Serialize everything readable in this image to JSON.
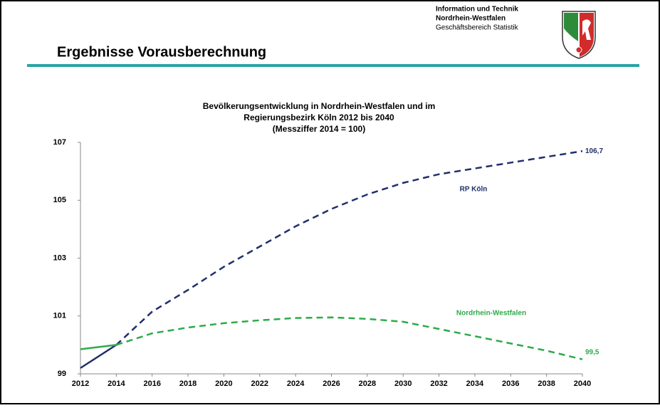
{
  "header": {
    "title": "Ergebnisse Vorausberechnung",
    "org_lines": [
      "Information und Technik",
      "Nordrhein-Westfalen",
      "Geschäftsbereich Statistik"
    ]
  },
  "chart_data": {
    "type": "line",
    "title_lines": [
      "Bevölkerungsentwicklung in Nordrhein-Westfalen und im",
      "Regierungsbezirk Köln 2012 bis 2040",
      "(Messziffer 2014 = 100)"
    ],
    "x": [
      2012,
      2014,
      2016,
      2018,
      2020,
      2022,
      2024,
      2026,
      2028,
      2030,
      2032,
      2034,
      2036,
      2038,
      2040
    ],
    "xlim": [
      2012,
      2040
    ],
    "xticks": [
      2012,
      2014,
      2016,
      2018,
      2020,
      2022,
      2024,
      2026,
      2028,
      2030,
      2032,
      2034,
      2036,
      2038,
      2040
    ],
    "ylim": [
      99,
      107
    ],
    "yticks": [
      99,
      101,
      103,
      105,
      107
    ],
    "dashed_from": 2014,
    "series": [
      {
        "name": "RP Köln",
        "color": "#1f2f6b",
        "values": [
          99.2,
          100.0,
          101.15,
          101.9,
          102.7,
          103.4,
          104.1,
          104.7,
          105.2,
          105.6,
          105.9,
          106.1,
          106.3,
          106.5,
          106.7
        ],
        "value_labels": [
          null,
          null,
          null,
          null,
          null,
          null,
          null,
          null,
          null,
          null,
          null,
          null,
          null,
          null,
          "106,7"
        ]
      },
      {
        "name": "Nordrhein-Westfalen",
        "color": "#2eaa4a",
        "values": [
          99.85,
          100.0,
          100.4,
          100.6,
          100.75,
          100.85,
          100.93,
          100.95,
          100.9,
          100.8,
          100.55,
          100.3,
          100.05,
          99.8,
          99.5
        ],
        "value_labels": [
          null,
          null,
          null,
          null,
          null,
          null,
          null,
          null,
          null,
          null,
          null,
          null,
          null,
          null,
          "99,5"
        ]
      }
    ]
  }
}
